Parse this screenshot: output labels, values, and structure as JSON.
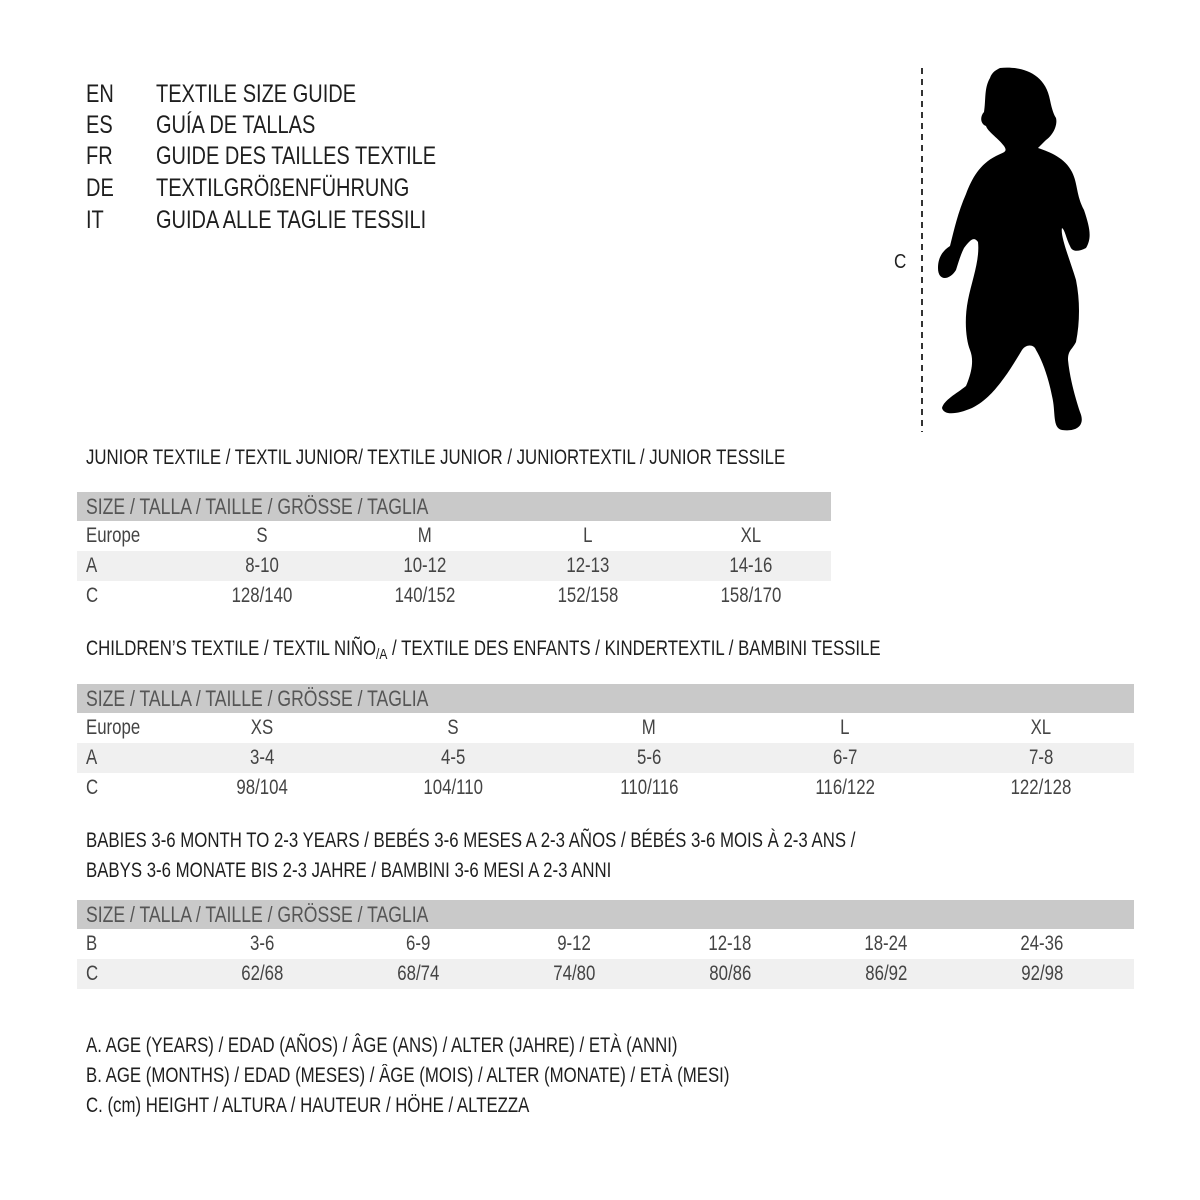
{
  "titles": [
    {
      "code": "EN",
      "title": "TEXTILE SIZE GUIDE"
    },
    {
      "code": "ES",
      "title": "GUÍA DE TALLAS"
    },
    {
      "code": "FR",
      "title": "GUIDE DES TAILLES TEXTILE"
    },
    {
      "code": "DE",
      "title": "TEXTILGRÖßENFÜHRUNG"
    },
    {
      "code": "IT",
      "title": "GUIDA ALLE TAGLIE TESSILI"
    }
  ],
  "figure": {
    "measure_label": "C",
    "icon": "baby-silhouette"
  },
  "junior": {
    "heading": "JUNIOR TEXTILE / TEXTIL JUNIOR/ TEXTILE JUNIOR / JUNIORTEXTIL / JUNIOR TESSILE",
    "header": "SIZE / TALLA / TAILLE / GRÖSSE / TAGLIA",
    "rows": [
      {
        "label": "Europe",
        "values": [
          "S",
          "M",
          "L",
          "XL"
        ]
      },
      {
        "label": "A",
        "values": [
          "8-10",
          "10-12",
          "12-13",
          "14-16"
        ]
      },
      {
        "label": "C",
        "values": [
          "128/140",
          "140/152",
          "152/158",
          "158/170"
        ]
      }
    ]
  },
  "children": {
    "heading_pre": "CHILDREN’S TEXTILE / TEXTIL NIÑO",
    "heading_sub": "/A",
    "heading_post": " / TEXTILE DES ENFANTS / KINDERTEXTIL / BAMBINI TESSILE",
    "header": "SIZE / TALLA / TAILLE / GRÖSSE / TAGLIA",
    "rows": [
      {
        "label": "Europe",
        "values": [
          "XS",
          "S",
          "M",
          "L",
          "XL"
        ]
      },
      {
        "label": "A",
        "values": [
          "3-4",
          "4-5",
          "5-6",
          "6-7",
          "7-8"
        ]
      },
      {
        "label": "C",
        "values": [
          "98/104",
          "104/110",
          "110/116",
          "116/122",
          "122/128"
        ]
      }
    ]
  },
  "babies": {
    "heading_line1": "BABIES 3-6 MONTH TO 2-3 YEARS / BEBÉS 3-6 MESES A 2-3 AÑOS / BÉBÉS 3-6 MOIS À 2-3 ANS /",
    "heading_line2": "BABYS 3-6 MONATE BIS 2-3 JAHRE / BAMBINI 3-6 MESI A 2-3 ANNI",
    "header": "SIZE / TALLA / TAILLE / GRÖSSE / TAGLIA",
    "rows": [
      {
        "label": "B",
        "values": [
          "3-6",
          "6-9",
          "9-12",
          "12-18",
          "18-24",
          "24-36"
        ]
      },
      {
        "label": "C",
        "values": [
          "62/68",
          "68/74",
          "74/80",
          "80/86",
          "86/92",
          "92/98"
        ]
      }
    ]
  },
  "legend": [
    "A. AGE (YEARS) / EDAD (AÑOS) / ÂGE (ANS) / ALTER (JAHRE) / ETÀ (ANNI)",
    "B. AGE (MONTHS) / EDAD (MESES) / ÂGE (MOIS) / ALTER (MONATE) / ETÀ (MESI)",
    "C. (cm) HEIGHT / ALTURA / HAUTEUR / HÖHE / ALTEZZA"
  ]
}
